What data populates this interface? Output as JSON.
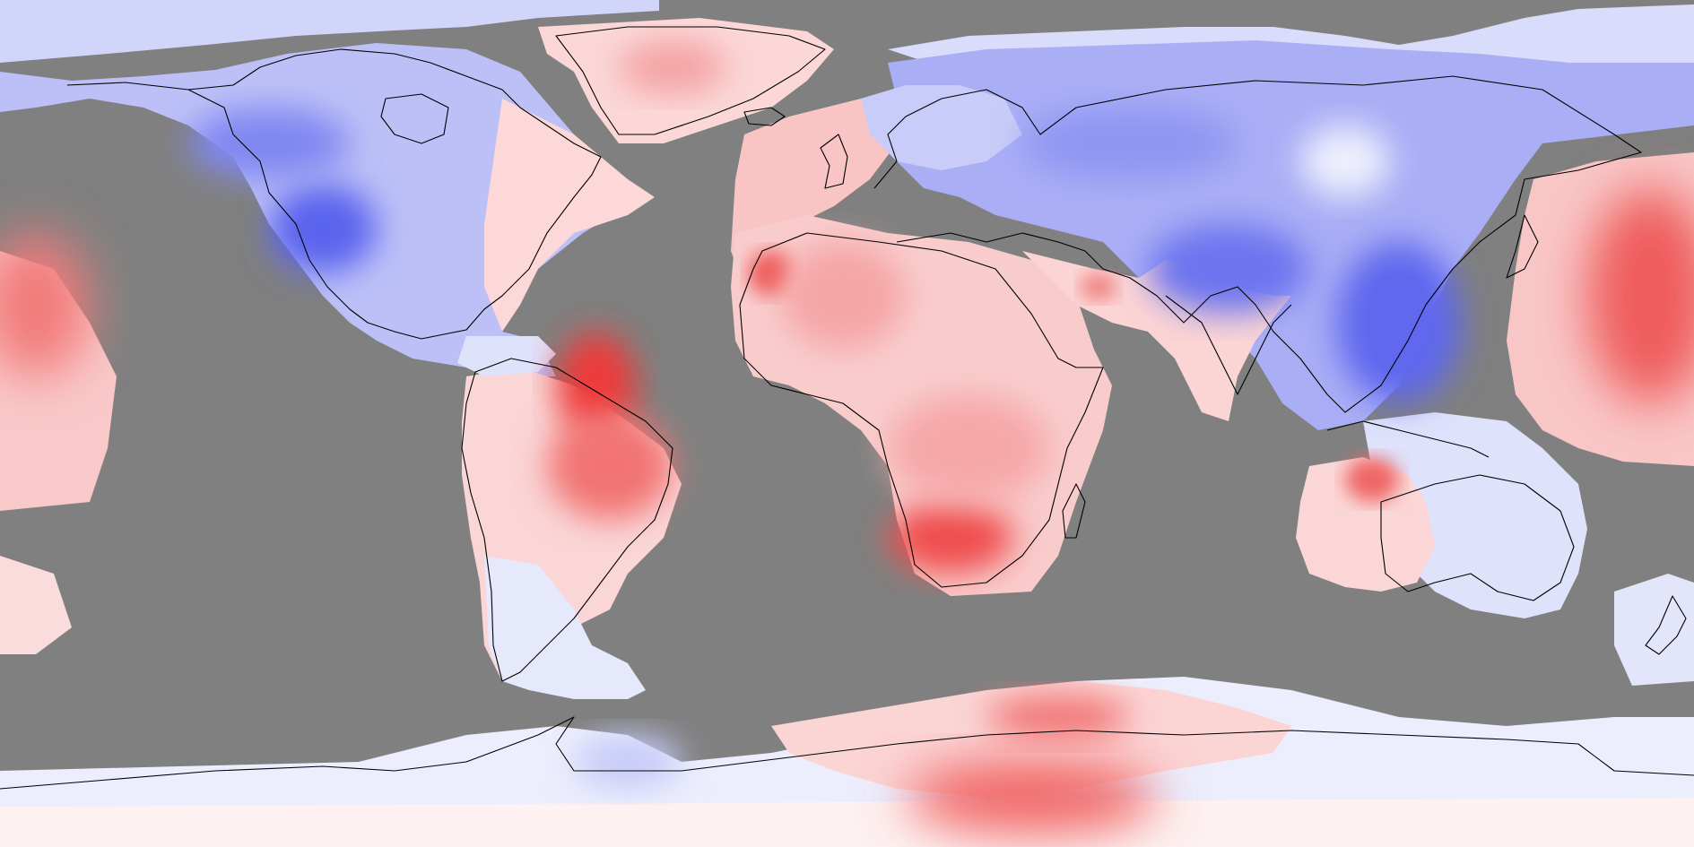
{
  "map": {
    "projection": "equirectangular",
    "extent": {
      "lon": [
        -180,
        180
      ],
      "lat": [
        -90,
        90
      ]
    },
    "no_data_color": "#808080",
    "colors": {
      "cold_strong": "#4a55ee",
      "cold_mid": "#8f96f2",
      "cold_light": "#d8dbfb",
      "neutral": "#fbf4f4",
      "warm_light": "#f9d3d3",
      "warm_mid": "#f59a9a",
      "warm_strong": "#ee3b3b",
      "coastline": "#000000"
    },
    "legend": [],
    "title": ""
  }
}
